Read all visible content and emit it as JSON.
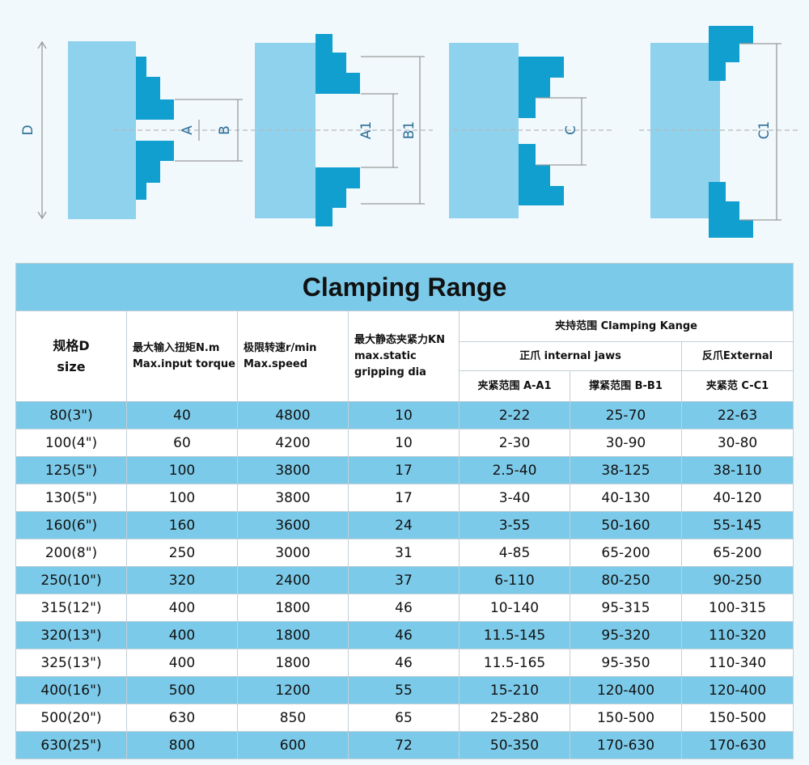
{
  "diagram_labels": {
    "d": "D",
    "a": "A",
    "b": "B",
    "a1": "A1",
    "b1": "B1",
    "c": "C",
    "c1": "C1"
  },
  "colors": {
    "body": "#8fd2ee",
    "jaw": "#119fd0",
    "table_band": "#7ccae9"
  },
  "table": {
    "title": "Clamping Range",
    "headers": {
      "size_cn": "规格D",
      "size_en": "size",
      "torque_cn": "最大输入扭矩N.m",
      "torque_en": "Max.input torque",
      "speed_cn": "极限转速r/min",
      "speed_en": "Max.speed",
      "force_cn": "最大静态夹紧力KN",
      "force_en1": "max.static",
      "force_en2": "gripping dia",
      "clamping": "夹持范围 Clamping Kange",
      "internal": "正爪 internal jaws",
      "external": "反爪External",
      "range_a": "夹紧范围 A-A1",
      "range_b": "撑紧范围 B-B1",
      "range_c": "夹紧范 C-C1"
    },
    "rows": [
      [
        "80(3\")",
        "40",
        "4800",
        "10",
        "2-22",
        "25-70",
        "22-63"
      ],
      [
        "100(4\")",
        "60",
        "4200",
        "10",
        "2-30",
        "30-90",
        "30-80"
      ],
      [
        "125(5\")",
        "100",
        "3800",
        "17",
        "2.5-40",
        "38-125",
        "38-110"
      ],
      [
        "130(5\")",
        "100",
        "3800",
        "17",
        "3-40",
        "40-130",
        "40-120"
      ],
      [
        "160(6\")",
        "160",
        "3600",
        "24",
        "3-55",
        "50-160",
        "55-145"
      ],
      [
        "200(8\")",
        "250",
        "3000",
        "31",
        "4-85",
        "65-200",
        "65-200"
      ],
      [
        "250(10\")",
        "320",
        "2400",
        "37",
        "6-110",
        "80-250",
        "90-250"
      ],
      [
        "315(12\")",
        "400",
        "1800",
        "46",
        "10-140",
        "95-315",
        "100-315"
      ],
      [
        "320(13\")",
        "400",
        "1800",
        "46",
        "11.5-145",
        "95-320",
        "110-320"
      ],
      [
        "325(13\")",
        "400",
        "1800",
        "46",
        "11.5-165",
        "95-350",
        "110-340"
      ],
      [
        "400(16\")",
        "500",
        "1200",
        "55",
        "15-210",
        "120-400",
        "120-400"
      ],
      [
        "500(20\")",
        "630",
        "850",
        "65",
        "25-280",
        "150-500",
        "150-500"
      ],
      [
        "630(25\")",
        "800",
        "600",
        "72",
        "50-350",
        "170-630",
        "170-630"
      ]
    ]
  }
}
